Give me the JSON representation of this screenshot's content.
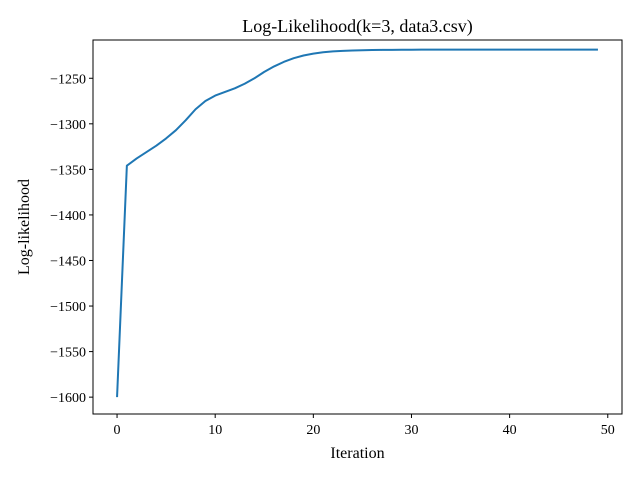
{
  "chart_data": {
    "type": "line",
    "title": "Log-Likelihood(k=3, data3.csv)",
    "xlabel": "Iteration",
    "ylabel": "Log-likelihood",
    "xlim": [
      -2.45,
      51.45
    ],
    "ylim": [
      -1618.5,
      -1208.0
    ],
    "xticks": [
      0,
      10,
      20,
      30,
      40,
      50
    ],
    "yticks": [
      -1250,
      -1300,
      -1350,
      -1400,
      -1450,
      -1500,
      -1550,
      -1600
    ],
    "xtick_labels": [
      "0",
      "10",
      "20",
      "30",
      "40",
      "50"
    ],
    "ytick_labels": [
      "−1250",
      "−1300",
      "−1350",
      "−1400",
      "−1450",
      "−1500",
      "−1550",
      "−1600"
    ],
    "grid": false,
    "line_color": "#1f77b4",
    "series": [
      {
        "x": [
          0,
          1,
          2,
          3,
          4,
          5,
          6,
          7,
          8,
          9,
          10,
          11,
          12,
          13,
          14,
          15,
          16,
          17,
          18,
          19,
          20,
          21,
          22,
          23,
          24,
          25,
          26,
          27,
          28,
          29,
          30,
          31,
          32,
          33,
          34,
          35,
          36,
          37,
          38,
          39,
          40,
          41,
          42,
          43,
          44,
          45,
          46,
          47,
          48,
          49
        ],
        "values": [
          -1600,
          -1346,
          -1338,
          -1331,
          -1324,
          -1316,
          -1307,
          -1296,
          -1284,
          -1275,
          -1269,
          -1265,
          -1261,
          -1256,
          -1250,
          -1243,
          -1237,
          -1232,
          -1228,
          -1225,
          -1223,
          -1221.5,
          -1220.5,
          -1220,
          -1219.5,
          -1219.2,
          -1219,
          -1218.9,
          -1218.8,
          -1218.7,
          -1218.7,
          -1218.6,
          -1218.6,
          -1218.6,
          -1218.6,
          -1218.6,
          -1218.6,
          -1218.6,
          -1218.6,
          -1218.6,
          -1218.6,
          -1218.6,
          -1218.6,
          -1218.6,
          -1218.6,
          -1218.6,
          -1218.6,
          -1218.6,
          -1218.6,
          -1218.6
        ]
      }
    ]
  }
}
